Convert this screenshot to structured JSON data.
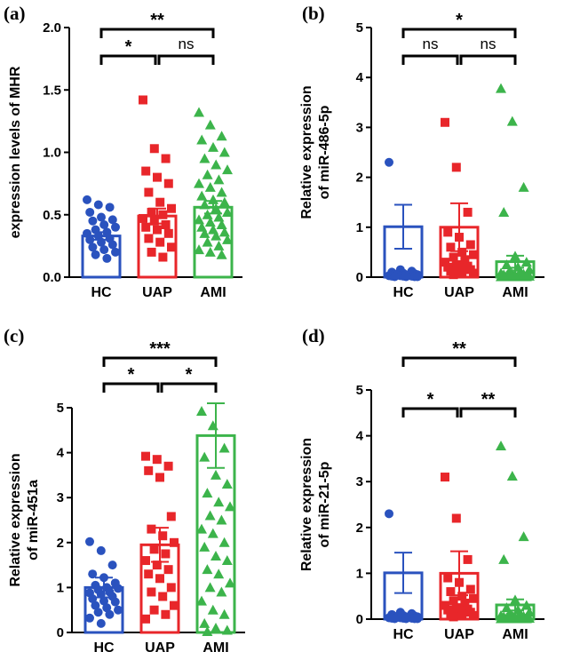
{
  "colors": {
    "HC": "#2a52be",
    "UAP": "#e8262a",
    "AMI": "#3cb44b",
    "axis": "#000000"
  },
  "chart_data": [
    {
      "id": "a",
      "panel_label": "(a)",
      "type": "bar",
      "ylabel": [
        "expression levels of MHR"
      ],
      "ylim": [
        0,
        2.0
      ],
      "yticks": [
        0.0,
        0.5,
        1.0,
        1.5,
        2.0
      ],
      "ytick_labels": [
        "0.0",
        "0.5",
        "1.0",
        "1.5",
        "2.0"
      ],
      "categories": [
        "HC",
        "UAP",
        "AMI"
      ],
      "values": [
        0.33,
        0.49,
        0.56
      ],
      "errors": [
        0.03,
        0.06,
        0.05
      ],
      "points": [
        [
          0.62,
          0.58,
          0.56,
          0.52,
          0.48,
          0.46,
          0.45,
          0.42,
          0.4,
          0.38,
          0.36,
          0.35,
          0.33,
          0.31,
          0.3,
          0.28,
          0.26,
          0.24,
          0.22,
          0.2,
          0.18,
          0.15
        ],
        [
          1.42,
          1.03,
          0.95,
          0.85,
          0.8,
          0.75,
          0.68,
          0.6,
          0.55,
          0.52,
          0.5,
          0.47,
          0.45,
          0.42,
          0.4,
          0.38,
          0.35,
          0.31,
          0.28,
          0.24,
          0.2,
          0.16
        ],
        [
          1.32,
          1.22,
          1.13,
          1.1,
          1.04,
          1.0,
          0.95,
          0.9,
          0.86,
          0.82,
          0.78,
          0.75,
          0.72,
          0.68,
          0.65,
          0.62,
          0.6,
          0.58,
          0.55,
          0.52,
          0.5,
          0.48,
          0.46,
          0.44,
          0.42,
          0.4,
          0.38,
          0.36,
          0.35,
          0.33,
          0.3,
          0.28,
          0.25,
          0.22,
          0.2,
          0.18
        ]
      ],
      "comparisons": [
        {
          "from": 0,
          "to": 1,
          "label": "*",
          "level": 1
        },
        {
          "from": 1,
          "to": 2,
          "label": "ns",
          "level": 1
        },
        {
          "from": 0,
          "to": 2,
          "label": "**",
          "level": 2
        }
      ]
    },
    {
      "id": "b",
      "panel_label": "(b)",
      "type": "bar",
      "ylabel": [
        "Relative expression",
        "of miR-486-5p"
      ],
      "ylim": [
        0,
        5
      ],
      "yticks": [
        0,
        1,
        2,
        3,
        4,
        5
      ],
      "ytick_labels": [
        "0",
        "1",
        "2",
        "3",
        "4",
        "5"
      ],
      "categories": [
        "HC",
        "UAP",
        "AMI"
      ],
      "values": [
        1.01,
        1.0,
        0.31
      ],
      "errors": [
        0.44,
        0.48,
        0.12
      ],
      "points": [
        [
          2.3,
          0.15,
          0.12,
          0.1,
          0.08,
          0.07,
          0.06,
          0.05,
          0.05,
          0.04,
          0.04,
          0.03,
          0.03,
          0.02,
          0.02,
          0.02,
          0.01,
          0.01,
          0.01,
          0.01
        ],
        [
          3.1,
          2.2,
          1.3,
          0.9,
          0.8,
          0.65,
          0.6,
          0.5,
          0.45,
          0.4,
          0.35,
          0.3,
          0.25,
          0.22,
          0.2,
          0.18,
          0.15,
          0.12,
          0.1,
          0.08,
          0.05
        ],
        [
          3.78,
          3.12,
          1.8,
          1.3,
          0.42,
          0.3,
          0.25,
          0.2,
          0.15,
          0.12,
          0.1,
          0.08,
          0.07,
          0.06,
          0.05,
          0.04,
          0.04,
          0.03,
          0.03,
          0.02,
          0.02,
          0.02,
          0.01,
          0.01,
          0.01,
          0.01,
          0.01,
          0.01
        ]
      ],
      "comparisons": [
        {
          "from": 0,
          "to": 1,
          "label": "ns",
          "level": 1
        },
        {
          "from": 1,
          "to": 2,
          "label": "ns",
          "level": 1
        },
        {
          "from": 0,
          "to": 2,
          "label": "*",
          "level": 2
        }
      ]
    },
    {
      "id": "c",
      "panel_label": "(c)",
      "type": "bar",
      "ylabel": [
        "Relative expression",
        "of miR-451a"
      ],
      "ylim": [
        0,
        5
      ],
      "yticks": [
        0,
        1,
        2,
        3,
        4,
        5
      ],
      "ytick_labels": [
        "0",
        "1",
        "2",
        "3",
        "4",
        "5"
      ],
      "categories": [
        "HC",
        "UAP",
        "AMI"
      ],
      "values": [
        1.0,
        1.95,
        4.38
      ],
      "errors": [
        0.22,
        0.38,
        0.72
      ],
      "points": [
        [
          2.02,
          1.82,
          1.5,
          1.3,
          1.22,
          1.1,
          1.05,
          1.0,
          0.98,
          0.95,
          0.9,
          0.88,
          0.85,
          0.8,
          0.75,
          0.7,
          0.68,
          0.6,
          0.55,
          0.5,
          0.45,
          0.4,
          0.32,
          0.2
        ],
        [
          3.92,
          3.85,
          3.7,
          3.6,
          3.45,
          2.58,
          2.3,
          2.15,
          2.0,
          1.85,
          1.75,
          1.6,
          1.5,
          1.4,
          1.3,
          1.2,
          1.0,
          0.9,
          0.8,
          0.6,
          0.5,
          0.4,
          0.3
        ],
        [
          4.92,
          4.6,
          4.1,
          3.9,
          3.5,
          3.3,
          3.1,
          2.9,
          2.8,
          2.6,
          2.5,
          2.3,
          2.2,
          2.0,
          1.9,
          1.7,
          1.6,
          1.4,
          1.3,
          1.1,
          1.0,
          0.9,
          0.7,
          0.5,
          0.4,
          0.2,
          0.1,
          0.05,
          0.02
        ]
      ],
      "comparisons": [
        {
          "from": 0,
          "to": 1,
          "label": "*",
          "level": 1
        },
        {
          "from": 1,
          "to": 2,
          "label": "*",
          "level": 1
        },
        {
          "from": 0,
          "to": 2,
          "label": "***",
          "level": 2
        }
      ]
    },
    {
      "id": "d",
      "panel_label": "(d)",
      "type": "bar",
      "ylabel": [
        "Relative expression",
        "of miR-21-5p"
      ],
      "ylim": [
        0,
        5
      ],
      "yticks": [
        0,
        1,
        2,
        3,
        4,
        5
      ],
      "ytick_labels": [
        "0",
        "1",
        "2",
        "3",
        "4",
        "5"
      ],
      "categories": [
        "HC",
        "UAP",
        "AMI"
      ],
      "values": [
        1.01,
        1.0,
        0.31
      ],
      "errors": [
        0.44,
        0.48,
        0.12
      ],
      "points": [
        [
          2.3,
          0.15,
          0.12,
          0.1,
          0.08,
          0.07,
          0.06,
          0.05,
          0.05,
          0.04,
          0.04,
          0.03,
          0.03,
          0.02,
          0.02,
          0.02,
          0.01,
          0.01,
          0.01,
          0.01
        ],
        [
          3.1,
          2.2,
          1.3,
          0.9,
          0.8,
          0.65,
          0.6,
          0.5,
          0.45,
          0.4,
          0.35,
          0.3,
          0.25,
          0.22,
          0.2,
          0.18,
          0.15,
          0.12,
          0.1,
          0.08,
          0.05
        ],
        [
          3.78,
          3.12,
          1.8,
          1.3,
          0.42,
          0.3,
          0.25,
          0.2,
          0.15,
          0.12,
          0.1,
          0.08,
          0.07,
          0.06,
          0.05,
          0.04,
          0.04,
          0.03,
          0.03,
          0.02,
          0.02,
          0.02,
          0.01,
          0.01,
          0.01,
          0.01,
          0.01,
          0.01
        ]
      ],
      "comparisons": [
        {
          "from": 0,
          "to": 1,
          "label": "*",
          "level": 1
        },
        {
          "from": 1,
          "to": 2,
          "label": "**",
          "level": 1
        },
        {
          "from": 0,
          "to": 2,
          "label": "**",
          "level": 2
        }
      ]
    }
  ]
}
